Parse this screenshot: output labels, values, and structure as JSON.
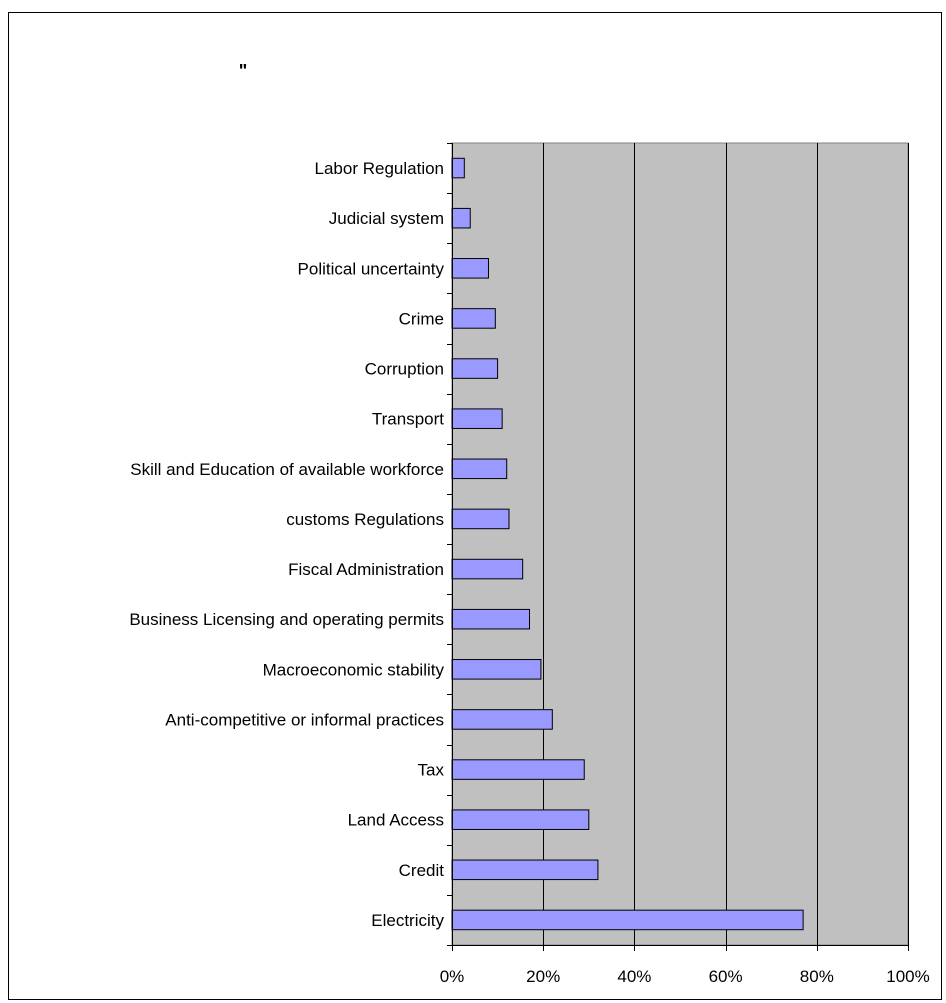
{
  "chart_data": {
    "type": "bar",
    "orientation": "horizontal",
    "title": "\"",
    "xlabel": "",
    "ylabel": "",
    "xlim": [
      0,
      1
    ],
    "x_ticks": [
      0,
      0.2,
      0.4,
      0.6,
      0.8,
      1.0
    ],
    "x_tick_labels": [
      "0%",
      "20%",
      "40%",
      "60%",
      "80%",
      "100%"
    ],
    "grid": "vertical",
    "legend": "none",
    "categories": [
      "Electricity",
      "Credit",
      "Land Access",
      "Tax",
      "Anti-competitive or informal practices",
      "Macroeconomic stability",
      "Business Licensing and operating permits",
      "Fiscal Administration",
      "customs Regulations",
      "Skill and Education of available workforce",
      "Transport",
      "Corruption",
      "Crime",
      "Political uncertainty",
      "Judicial system",
      "Labor Regulation"
    ],
    "values": [
      0.77,
      0.32,
      0.3,
      0.29,
      0.22,
      0.195,
      0.17,
      0.155,
      0.125,
      0.12,
      0.11,
      0.1,
      0.095,
      0.08,
      0.04,
      0.027
    ],
    "colors": {
      "bar": "#9999ff",
      "plot_background": "#c0c0c0",
      "gridline": "#000000"
    }
  }
}
